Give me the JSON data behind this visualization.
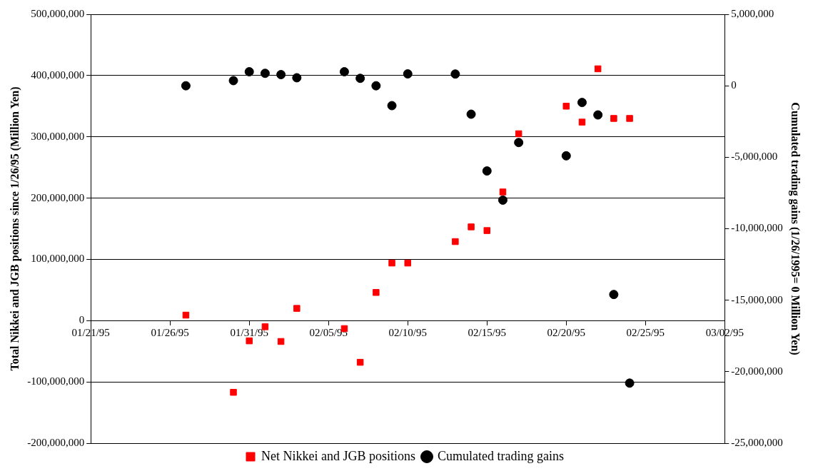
{
  "chart_data": {
    "type": "scatter",
    "ylabel": "Total Nikkei and JGB positions since 1/26/95 (Million Yen)",
    "y2label": "Cumulated trading gains (1/26/1995= 0 Million Yen)",
    "xlim": [
      "1995-01-21",
      "1995-03-02"
    ],
    "xticks": [
      {
        "value": "1995-01-21",
        "label": "01/21/95"
      },
      {
        "value": "1995-01-26",
        "label": "01/26/95"
      },
      {
        "value": "1995-01-31",
        "label": "01/31/95"
      },
      {
        "value": "1995-02-05",
        "label": "02/05/95"
      },
      {
        "value": "1995-02-10",
        "label": "02/10/95"
      },
      {
        "value": "1995-02-15",
        "label": "02/15/95"
      },
      {
        "value": "1995-02-20",
        "label": "02/20/95"
      },
      {
        "value": "1995-02-25",
        "label": "02/25/95"
      },
      {
        "value": "1995-03-02",
        "label": "03/02/95"
      }
    ],
    "ylim": [
      -200000000,
      500000000
    ],
    "yticks": [
      {
        "value": -200000000,
        "label": "-200,000,000"
      },
      {
        "value": -100000000,
        "label": "-100,000,000"
      },
      {
        "value": 0,
        "label": "0"
      },
      {
        "value": 100000000,
        "label": "100,000,000"
      },
      {
        "value": 200000000,
        "label": "200,000,000"
      },
      {
        "value": 300000000,
        "label": "300,000,000"
      },
      {
        "value": 400000000,
        "label": "400,000,000"
      },
      {
        "value": 500000000,
        "label": "500,000,000"
      }
    ],
    "y2lim": [
      -25000000,
      5000000
    ],
    "y2ticks": [
      {
        "value": -25000000,
        "label": "-25,000,000"
      },
      {
        "value": -20000000,
        "label": "-20,000,000"
      },
      {
        "value": -15000000,
        "label": "-15,000,000"
      },
      {
        "value": -10000000,
        "label": "-10,000,000"
      },
      {
        "value": -5000000,
        "label": "-5,000,000"
      },
      {
        "value": 0,
        "label": "0"
      },
      {
        "value": 5000000,
        "label": "5,000,000"
      }
    ],
    "grid": "y",
    "legend": "bottom",
    "series": [
      {
        "name": "Net Nikkei and JGB positions",
        "color": "#ff0000",
        "marker": "square",
        "x": [
          "1995-01-27",
          "1995-01-30",
          "1995-01-31",
          "1995-02-01",
          "1995-02-02",
          "1995-02-03",
          "1995-02-06",
          "1995-02-07",
          "1995-02-08",
          "1995-02-09",
          "1995-02-10",
          "1995-02-13",
          "1995-02-14",
          "1995-02-15",
          "1995-02-16",
          "1995-02-17",
          "1995-02-20",
          "1995-02-21",
          "1995-02-22",
          "1995-02-23",
          "1995-02-24"
        ],
        "values": [
          9000000,
          -117000000,
          -33000000,
          -10000000,
          -34000000,
          20000000,
          -13000000,
          -68000000,
          46000000,
          94000000,
          94000000,
          129000000,
          153000000,
          147000000,
          210000000,
          305000000,
          350000000,
          324000000,
          411000000,
          330000000,
          330000000
        ]
      },
      {
        "name": "Cumulated trading gains",
        "color": "#000000",
        "marker": "circle",
        "axis": "y2",
        "x": [
          "1995-01-27",
          "1995-01-30",
          "1995-01-31",
          "1995-02-01",
          "1995-02-02",
          "1995-02-03",
          "1995-02-06",
          "1995-02-07",
          "1995-02-08",
          "1995-02-09",
          "1995-02-10",
          "1995-02-13",
          "1995-02-14",
          "1995-02-15",
          "1995-02-16",
          "1995-02-17",
          "1995-02-20",
          "1995-02-21",
          "1995-02-22",
          "1995-02-23",
          "1995-02-24"
        ],
        "values": [
          0,
          360000,
          980000,
          870000,
          780000,
          560000,
          980000,
          520000,
          0,
          -1390000,
          830000,
          820000,
          -1990000,
          -5960000,
          -8000000,
          -3970000,
          -4900000,
          -1170000,
          -2040000,
          -14600000,
          -20800000
        ]
      }
    ]
  }
}
